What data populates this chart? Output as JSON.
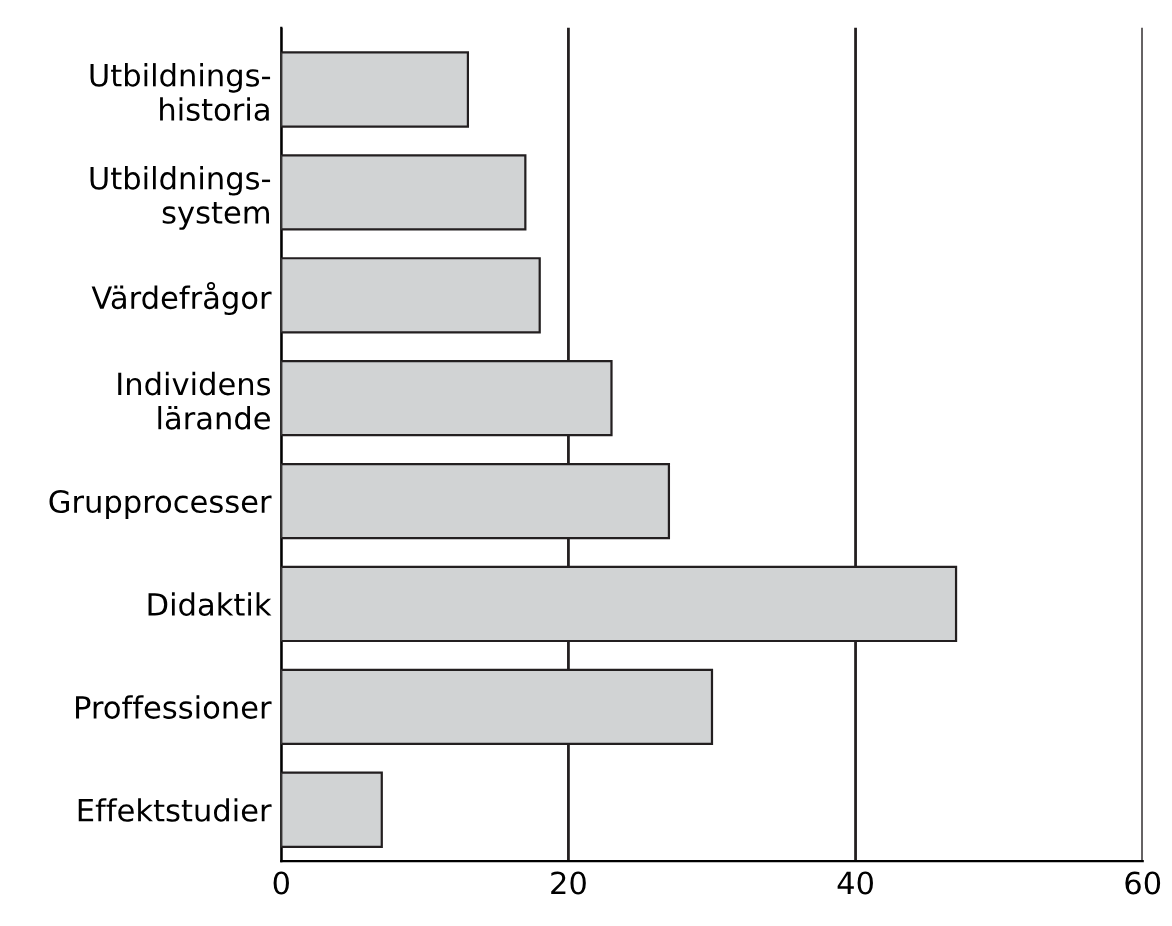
{
  "chart_data": {
    "type": "bar",
    "orientation": "horizontal",
    "categories": [
      "Utbildnings-\nhistoria",
      "Utbildnings-\nsystem",
      "Värdefrågor",
      "Individens\nlärande",
      "Grupprocesser",
      "Didaktik",
      "Proffessioner",
      "Effektstudier"
    ],
    "values": [
      13,
      17,
      18,
      23,
      27,
      47,
      30,
      7
    ],
    "color": "#d1d3d4",
    "xlim": [
      0,
      60
    ],
    "xticks": [
      0,
      20,
      40,
      60
    ],
    "grid": "x"
  }
}
